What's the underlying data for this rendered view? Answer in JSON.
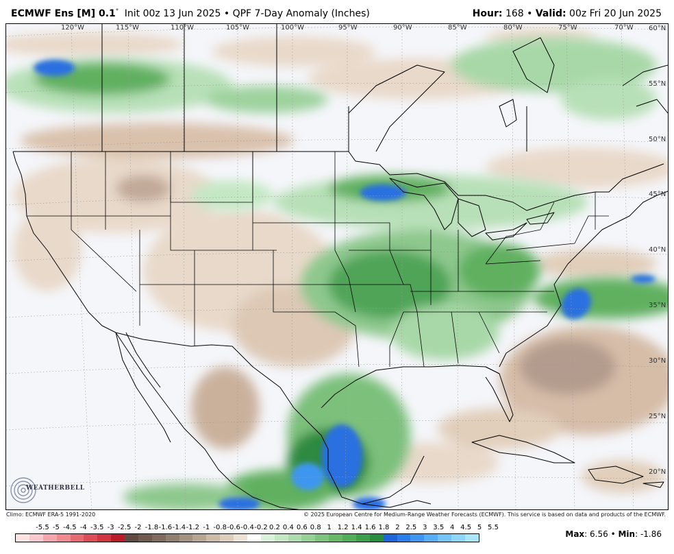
{
  "header": {
    "model": "ECMWF Ens [M] 0.1",
    "deg": "°",
    "subtitle": "Init 00z 13 Jun 2025 • QPF 7-Day Anomaly (Inches)",
    "hour_label": "Hour:",
    "hour_value": "168",
    "bullet": "•",
    "valid_label": "Valid:",
    "valid_value": "00z Fri 20 Jun 2025"
  },
  "map": {
    "lon_labels": [
      "120°W",
      "115°W",
      "110°W",
      "105°W",
      "100°W",
      "95°W",
      "90°W",
      "85°W",
      "80°W",
      "75°W",
      "70°W"
    ],
    "lat_labels": [
      "60°N",
      "55°N",
      "50°N",
      "45°N",
      "40°N",
      "35°N",
      "30°N",
      "25°N",
      "20°N"
    ],
    "colors": {
      "ocean_bg": "#f5f6fa",
      "dry_light": "#e8d8c8",
      "dry_mid": "#d8bfa8",
      "dry_dark": "#a89080",
      "wet_light": "#b8e0b8",
      "wet_mid": "#60b060",
      "wet_dark": "#2e8a40",
      "very_wet": "#2a70e0"
    }
  },
  "logo": {
    "name": "WEATHERBELL",
    "icon": "swirl-logo-icon"
  },
  "footer": {
    "climo": "Climo: ECMWF ERA-5 1991-2020",
    "copyright": "© 2025 European Centre for Medium-Range Weather Forecasts (ECMWF). This service is based on data and products of the ECMWF."
  },
  "legend": {
    "labels": [
      "-5.5",
      "-5",
      "-4.5",
      "-4",
      "-3.5",
      "-3",
      "-2.5",
      "-2",
      "-1.8",
      "-1.6",
      "-1.4",
      "-1.2",
      "-1",
      "-0.8",
      "-0.6",
      "-0.4",
      "-0.2",
      "0.2",
      "0.4",
      "0.6",
      "0.8",
      "1",
      "1.2",
      "1.4",
      "1.6",
      "1.8",
      "2",
      "2.5",
      "3",
      "3.5",
      "4",
      "4.5",
      "5",
      "5.5"
    ],
    "colors": [
      "#fde2e4",
      "#f9c8cc",
      "#f4a6ac",
      "#ee8a90",
      "#e66c74",
      "#db4e58",
      "#cf3440",
      "#b81c28",
      "#5e4a40",
      "#6e5a4e",
      "#7e6a5e",
      "#907e70",
      "#a49282",
      "#b8a694",
      "#cbbba8",
      "#dccdbc",
      "#ece2d6",
      "#ffffff",
      "#daf1da",
      "#c4e8c4",
      "#aedcae",
      "#96d096",
      "#7ec47e",
      "#68b868",
      "#52ac5a",
      "#3d9e4c",
      "#2a8c3e",
      "#1e66d8",
      "#2b7ee8",
      "#3e96f0",
      "#58aef4",
      "#74c4f6",
      "#8ed6f8",
      "#aae6fa"
    ]
  },
  "stats": {
    "max_label": "Max",
    "max_value": "6.56",
    "min_label": "Min",
    "min_value": "-1.86"
  }
}
